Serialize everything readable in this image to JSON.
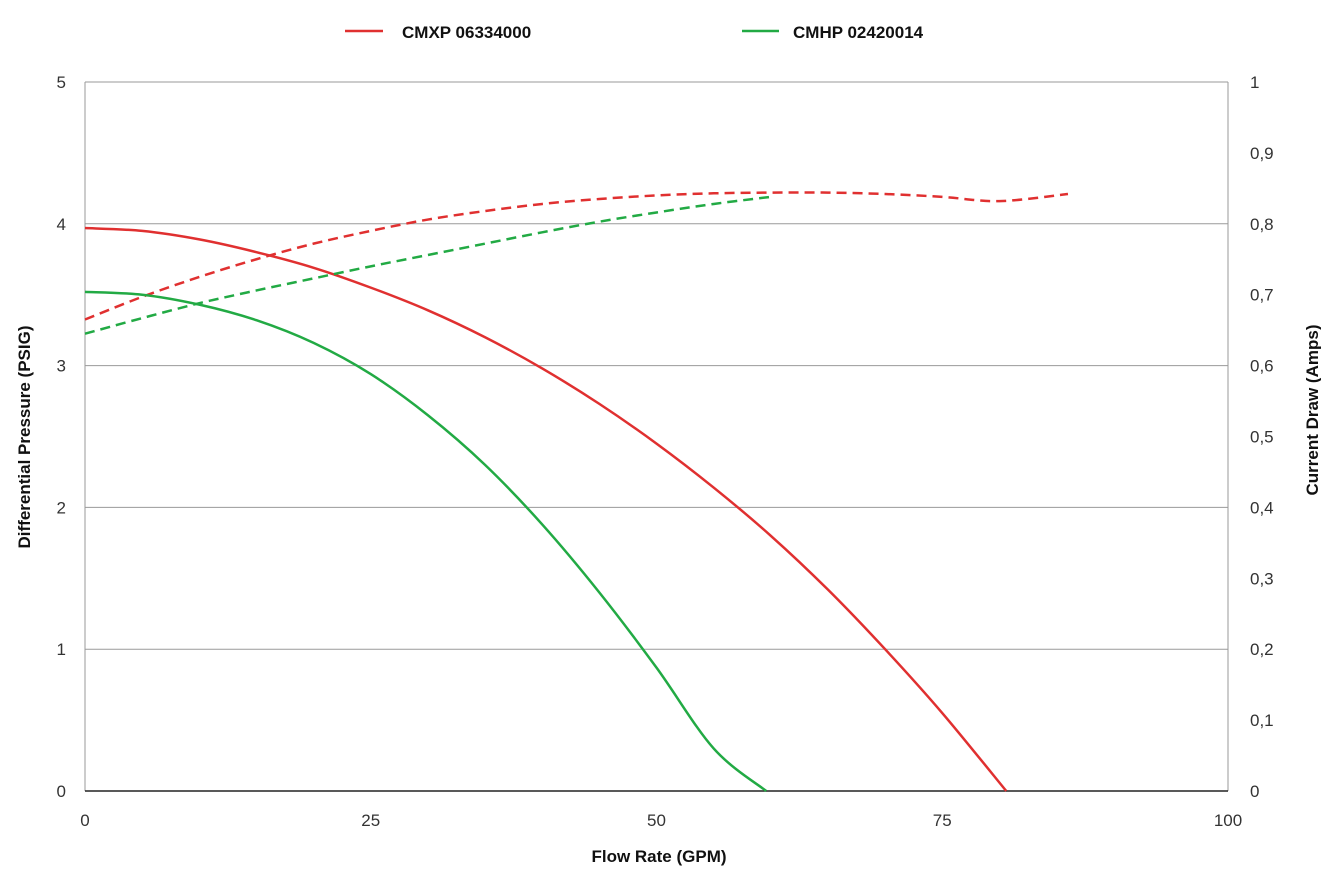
{
  "chart_data": {
    "type": "line",
    "title": "",
    "xlabel": "Flow Rate (GPM)",
    "ylabel_left": "Differential Pressure (PSIG)",
    "ylabel_right": "Current Draw (Amps)",
    "xlim": [
      0,
      100
    ],
    "ylim_left": [
      0,
      5
    ],
    "ylim_right": [
      0,
      1
    ],
    "x_ticks": [
      "0",
      "25",
      "50",
      "75",
      "100"
    ],
    "y_left_ticks": [
      "0",
      "1",
      "2",
      "3",
      "4",
      "5"
    ],
    "y_right_ticks": [
      "0",
      "0,1",
      "0,2",
      "0,3",
      "0,4",
      "0,5",
      "0,6",
      "0,7",
      "0,8",
      "0,9",
      "1"
    ],
    "grid": "horizontal",
    "legend_position": "top-center",
    "series": [
      {
        "name": "CMXP 06334000",
        "color": "#e03030",
        "axis": "left",
        "style": "solid",
        "x": [
          0,
          5,
          10,
          15,
          20,
          25,
          30,
          35,
          40,
          45,
          50,
          55,
          60,
          65,
          70,
          75,
          80.6
        ],
        "y": [
          3.97,
          3.95,
          3.89,
          3.8,
          3.69,
          3.55,
          3.39,
          3.2,
          2.98,
          2.73,
          2.45,
          2.14,
          1.8,
          1.42,
          1.0,
          0.55,
          0.0
        ]
      },
      {
        "name": "CMXP 06334000",
        "color": "#e03030",
        "axis": "right",
        "style": "dashed",
        "x": [
          0,
          5,
          10,
          15,
          20,
          25,
          30,
          35,
          40,
          45,
          50,
          55,
          60,
          65,
          70,
          75,
          80,
          86
        ],
        "y": [
          0.665,
          0.697,
          0.725,
          0.75,
          0.772,
          0.79,
          0.806,
          0.818,
          0.828,
          0.835,
          0.84,
          0.843,
          0.844,
          0.844,
          0.842,
          0.838,
          0.832,
          0.842
        ]
      },
      {
        "name": "CMHP 02420014",
        "color": "#22aa44",
        "axis": "left",
        "style": "solid",
        "x": [
          0,
          5,
          10,
          15,
          20,
          25,
          30,
          35,
          40,
          45,
          50,
          55,
          59.6
        ],
        "y": [
          3.52,
          3.5,
          3.43,
          3.32,
          3.16,
          2.94,
          2.65,
          2.3,
          1.88,
          1.4,
          0.87,
          0.3,
          0.0
        ]
      },
      {
        "name": "CMHP 02420014",
        "color": "#22aa44",
        "axis": "right",
        "style": "dashed",
        "x": [
          0,
          5,
          10,
          15,
          20,
          25,
          30,
          35,
          40,
          45,
          50,
          55,
          60
        ],
        "y": [
          0.645,
          0.667,
          0.688,
          0.706,
          0.723,
          0.74,
          0.756,
          0.772,
          0.788,
          0.803,
          0.816,
          0.828,
          0.838
        ]
      }
    ]
  },
  "legend": [
    {
      "label": "CMXP 06334000",
      "color": "#e03030"
    },
    {
      "label": "CMHP 02420014",
      "color": "#22aa44"
    }
  ]
}
